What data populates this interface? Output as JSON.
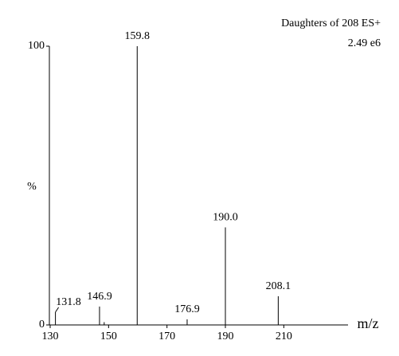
{
  "chart_data": {
    "type": "spectrum",
    "title": "Daughters of 208 ES+",
    "subtitle": "2.49 e6",
    "ylabel": "%",
    "xlabel": "m/z",
    "x": [
      131.8,
      146.9,
      148.5,
      159.8,
      176.9,
      190.0,
      208.1
    ],
    "values": [
      4.6,
      6.6,
      1,
      100,
      2,
      35,
      10.3
    ],
    "value_labels": [
      "131.8",
      "146.9",
      null,
      "159.8",
      "176.9",
      "190.0",
      "208.1"
    ],
    "color": "#000000",
    "xlim": [
      130,
      232
    ],
    "xticks": [
      130,
      150,
      170,
      190,
      210
    ],
    "ylim": [
      0,
      100
    ],
    "yticks": [
      0,
      100
    ]
  }
}
